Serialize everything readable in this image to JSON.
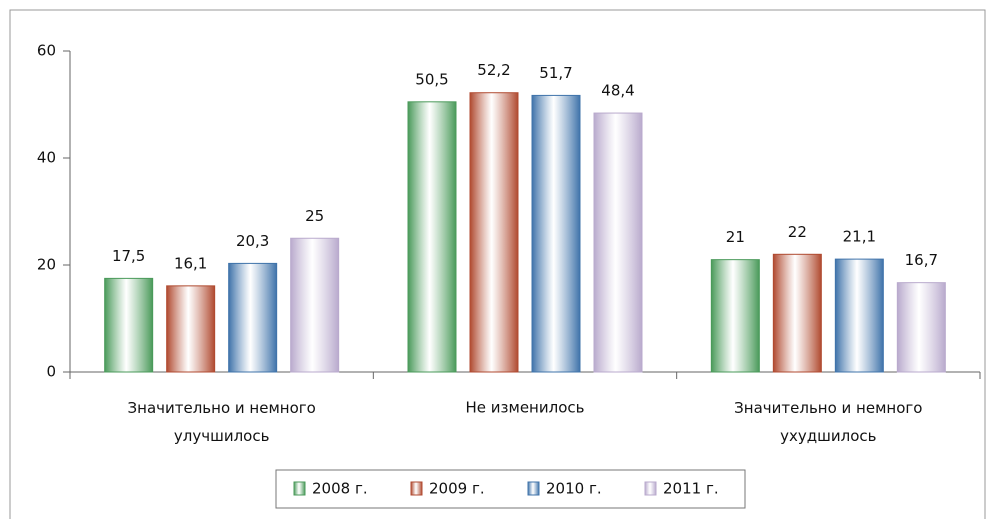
{
  "chart_data": {
    "type": "bar",
    "categories": [
      "Значительно и немного улучшилось",
      "Не изменилось",
      "Значительно и немного ухудшилось"
    ],
    "series": [
      {
        "name": "2008 г.",
        "color": "#4a9a5a",
        "values": [
          17.5,
          50.5,
          21
        ],
        "value_labels": [
          "17,5",
          "50,5",
          "21"
        ]
      },
      {
        "name": "2009 г.",
        "color": "#b04a30",
        "values": [
          16.1,
          52.2,
          22
        ],
        "value_labels": [
          "16,1",
          "52,2",
          "22"
        ]
      },
      {
        "name": "2010 г.",
        "color": "#3f73aa",
        "values": [
          20.3,
          51.7,
          21.1
        ],
        "value_labels": [
          "20,3",
          "51,7",
          "21,1"
        ]
      },
      {
        "name": "2011 г.",
        "color": "#b9aacd",
        "values": [
          25,
          48.4,
          16.7
        ],
        "value_labels": [
          "25",
          "48,4",
          "16,7"
        ]
      }
    ],
    "ylim": [
      0,
      60
    ],
    "yticks": [
      0,
      20,
      40,
      60
    ],
    "grid": false,
    "legend": "bottom"
  }
}
